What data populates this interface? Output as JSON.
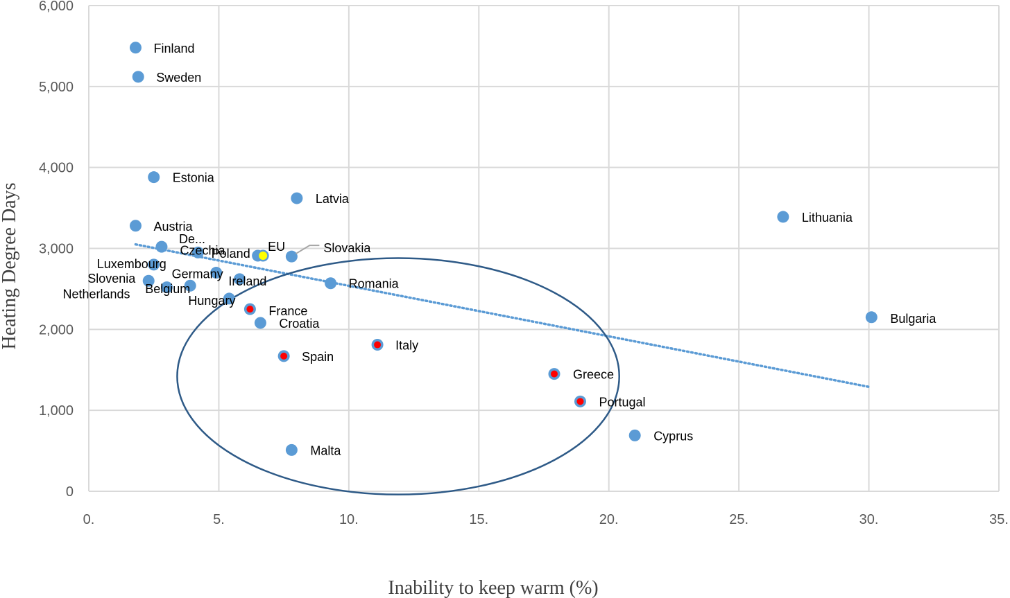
{
  "chart_data": {
    "type": "scatter",
    "xlabel": "Inability to keep warm (%)",
    "ylabel": "Heating Degree Days",
    "xlim": [
      0,
      35
    ],
    "ylim": [
      0,
      6000
    ],
    "x_ticks": [
      0,
      5,
      10,
      15,
      20,
      25,
      30,
      35
    ],
    "x_tick_labels": [
      "0.",
      "5.",
      "10.",
      "15.",
      "20.",
      "25.",
      "30.",
      "35."
    ],
    "y_ticks": [
      0,
      1000,
      2000,
      3000,
      4000,
      5000,
      6000
    ],
    "y_tick_labels": [
      "0",
      "1,000",
      "2,000",
      "3,000",
      "4,000",
      "5,000",
      "6,000"
    ],
    "grid": true,
    "colors": {
      "default": "#5b9bd5",
      "highlight_red": "#ff0000",
      "eu": "#ffff00",
      "trendline": "#5b9bd5",
      "ellipse": "#2e5a87",
      "grid": "#d9d9d9"
    },
    "points": [
      {
        "label": "Finland",
        "x": 1.8,
        "y": 5480,
        "color": "#5b9bd5"
      },
      {
        "label": "Sweden",
        "x": 1.9,
        "y": 5120,
        "color": "#5b9bd5"
      },
      {
        "label": "Estonia",
        "x": 2.5,
        "y": 3880,
        "color": "#5b9bd5"
      },
      {
        "label": "Latvia",
        "x": 8.0,
        "y": 3620,
        "color": "#5b9bd5"
      },
      {
        "label": "Lithuania",
        "x": 26.7,
        "y": 3390,
        "color": "#5b9bd5"
      },
      {
        "label": "Austria",
        "x": 1.8,
        "y": 3280,
        "color": "#5b9bd5"
      },
      {
        "label": "De...",
        "x": 2.8,
        "y": 3020,
        "color": "#5b9bd5"
      },
      {
        "label": "Czechia",
        "x": 4.2,
        "y": 2950,
        "color": "#5b9bd5"
      },
      {
        "label": "Poland",
        "x": 6.5,
        "y": 2910,
        "color": "#5b9bd5"
      },
      {
        "label": "EU",
        "x": 6.7,
        "y": 2910,
        "color": "#ffff00"
      },
      {
        "label": "Slovakia",
        "x": 7.8,
        "y": 2900,
        "color": "#5b9bd5"
      },
      {
        "label": "Luxembourg",
        "x": 2.5,
        "y": 2800,
        "color": "#5b9bd5"
      },
      {
        "label": "Germany",
        "x": 4.9,
        "y": 2700,
        "color": "#5b9bd5"
      },
      {
        "label": "Ireland",
        "x": 5.8,
        "y": 2620,
        "color": "#5b9bd5"
      },
      {
        "label": "Slovenia",
        "x": 2.3,
        "y": 2600,
        "color": "#5b9bd5"
      },
      {
        "label": "Belgium",
        "x": 3.9,
        "y": 2540,
        "color": "#5b9bd5"
      },
      {
        "label": "Netherlands",
        "x": 3.0,
        "y": 2520,
        "color": "#5b9bd5"
      },
      {
        "label": "Romania",
        "x": 9.3,
        "y": 2570,
        "color": "#5b9bd5"
      },
      {
        "label": "Hungary",
        "x": 5.4,
        "y": 2380,
        "color": "#5b9bd5"
      },
      {
        "label": "France",
        "x": 6.2,
        "y": 2250,
        "color": "#ff0000"
      },
      {
        "label": "Croatia",
        "x": 6.6,
        "y": 2080,
        "color": "#5b9bd5"
      },
      {
        "label": "Bulgaria",
        "x": 30.1,
        "y": 2150,
        "color": "#5b9bd5"
      },
      {
        "label": "Italy",
        "x": 11.1,
        "y": 1810,
        "color": "#ff0000"
      },
      {
        "label": "Spain",
        "x": 7.5,
        "y": 1670,
        "color": "#ff0000"
      },
      {
        "label": "Greece",
        "x": 17.9,
        "y": 1450,
        "color": "#ff0000"
      },
      {
        "label": "Portugal",
        "x": 18.9,
        "y": 1110,
        "color": "#ff0000"
      },
      {
        "label": "Cyprus",
        "x": 21.0,
        "y": 690,
        "color": "#5b9bd5"
      },
      {
        "label": "Malta",
        "x": 7.8,
        "y": 510,
        "color": "#5b9bd5"
      }
    ],
    "trendline": {
      "x": [
        1.8,
        30.0
      ],
      "y": [
        3050,
        1290
      ]
    },
    "ellipse": {
      "cx": 11.9,
      "cy": 1420,
      "rx": 8.5,
      "ry": 1460
    }
  }
}
